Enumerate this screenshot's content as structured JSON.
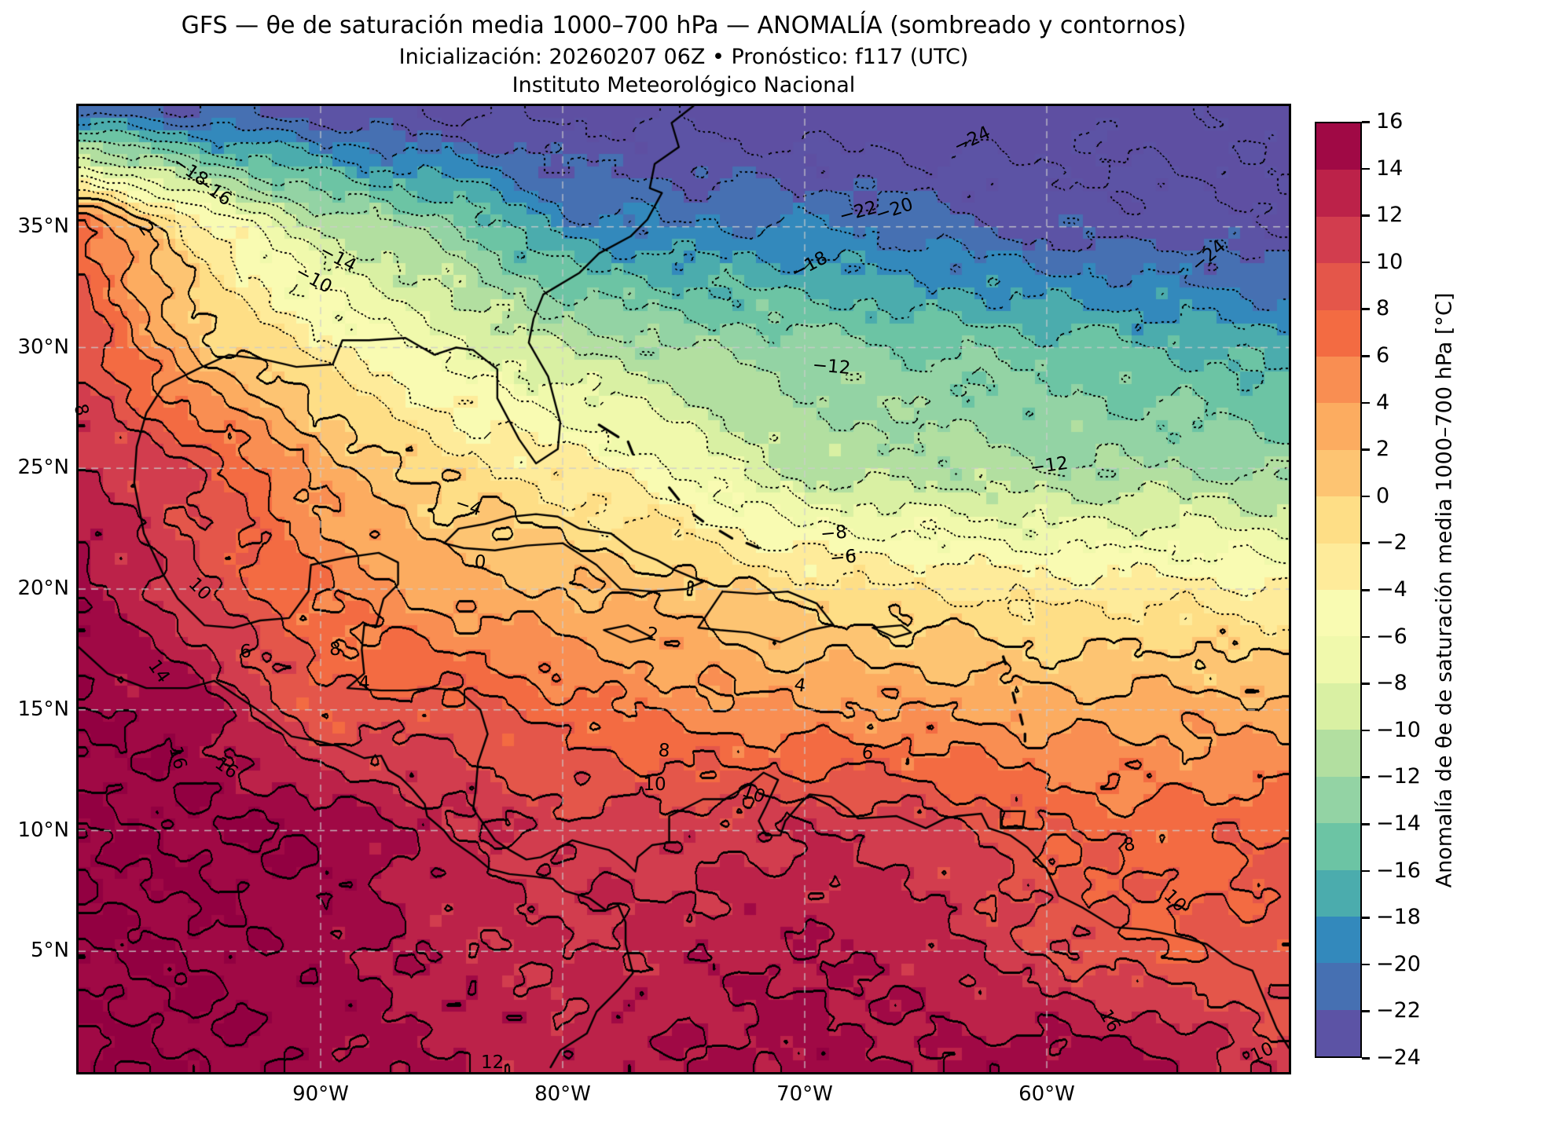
{
  "title": {
    "line1": "GFS — θe de saturación media 1000–700 hPa — ANOMALÍA (sombreado y contornos)",
    "line2": "Inicialización: 20260207 06Z   •   Pronóstico: f117 (UTC)",
    "line3": "Instituto Meteorológico Nacional"
  },
  "axes": {
    "lat_ticks": [
      {
        "label": "35°N",
        "value": 35
      },
      {
        "label": "30°N",
        "value": 30
      },
      {
        "label": "25°N",
        "value": 25
      },
      {
        "label": "20°N",
        "value": 20
      },
      {
        "label": "15°N",
        "value": 15
      },
      {
        "label": "10°N",
        "value": 10
      },
      {
        "label": "5°N",
        "value": 5
      }
    ],
    "lon_ticks": [
      {
        "label": "90°W",
        "value": -90
      },
      {
        "label": "80°W",
        "value": -80
      },
      {
        "label": "70°W",
        "value": -70
      },
      {
        "label": "60°W",
        "value": -60
      }
    ]
  },
  "colorbar": {
    "label": "Anomalía de θe de saturación media 1000–700 hPa [°C]",
    "tick_values": [
      16,
      14,
      12,
      10,
      8,
      6,
      4,
      2,
      0,
      -2,
      -4,
      -6,
      -8,
      -10,
      -12,
      -14,
      -16,
      -18,
      -20,
      -22,
      -24
    ],
    "tick_labels": [
      "16",
      "14",
      "12",
      "10",
      "8",
      "6",
      "4",
      "2",
      "0",
      "−2",
      "−4",
      "−6",
      "−8",
      "−10",
      "−12",
      "−14",
      "−16",
      "−18",
      "−20",
      "−22",
      "−24"
    ]
  },
  "chart_data": {
    "type": "heatmap",
    "field_name": "Anomalía de θe de saturación media 1000–700 hPa [°C]",
    "lon_range": [
      -100,
      -50
    ],
    "lat_range": [
      0,
      40
    ],
    "contour_interval": 2,
    "bin_edges_min": -24,
    "bin_edges_max": 16,
    "grid_lats": [
      40,
      35,
      30,
      25,
      20,
      15,
      10,
      5,
      0
    ],
    "grid_lons": [
      -100,
      -95,
      -90,
      -85,
      -80,
      -75,
      -70,
      -65,
      -60,
      -55,
      -50
    ],
    "values": [
      [
        -22,
        -23,
        -24,
        -25,
        -25,
        -25,
        -26,
        -26,
        -25,
        -25,
        -25
      ],
      [
        7,
        -3,
        -10,
        -13,
        -19,
        -20,
        -20,
        -21,
        -23,
        -23,
        -24
      ],
      [
        10,
        1,
        -3,
        -7,
        -10,
        -12,
        -13,
        -14,
        -15,
        -16,
        -17
      ],
      [
        12,
        10,
        3,
        -1,
        -3,
        -6,
        -11,
        -11,
        -12,
        -12,
        -13
      ],
      [
        15.5,
        10,
        6,
        3,
        2,
        1,
        -1,
        -2,
        -3,
        -3,
        -4
      ],
      [
        16,
        15,
        8,
        9,
        7,
        5,
        4,
        4,
        3,
        3,
        3
      ],
      [
        16,
        16,
        16,
        13,
        11,
        11,
        12,
        11,
        8,
        7,
        8
      ],
      [
        16,
        16,
        15,
        13,
        12,
        13,
        14,
        13,
        10,
        8,
        9
      ],
      [
        16,
        16,
        15,
        14,
        13,
        14,
        15,
        14,
        16,
        15,
        10
      ]
    ],
    "colors": [
      "#5c53a5",
      "#4670b2",
      "#3389bc",
      "#4bacad",
      "#6cc4a4",
      "#93d3a4",
      "#b2dfa0",
      "#d9f0a3",
      "#f0f9ac",
      "#f9fbb2",
      "#feeb9a",
      "#fede86",
      "#fdc472",
      "#fcac60",
      "#f98e52",
      "#f36b42",
      "#e4564a",
      "#d23d4e",
      "#bc2249",
      "#a00945"
    ],
    "under_color": "#5e4fa2",
    "over_color": "#920041",
    "gridline_color": "#c8c8c8",
    "contour_labels": [
      {
        "t": "−18",
        "lon": -95.4,
        "lat": 37.3,
        "r": 35
      },
      {
        "t": "−16",
        "lon": -94.4,
        "lat": 36.5,
        "r": 35
      },
      {
        "t": "2",
        "lon": -97.2,
        "lat": 34.9,
        "r": 55
      },
      {
        "t": "−14",
        "lon": -89.3,
        "lat": 33.7,
        "r": 28
      },
      {
        "t": "−10",
        "lon": -90.3,
        "lat": 32.8,
        "r": 28
      },
      {
        "t": "−24",
        "lon": -63.1,
        "lat": 38.6,
        "r": -25
      },
      {
        "t": "−22",
        "lon": -67.8,
        "lat": 35.6,
        "r": -15
      },
      {
        "t": "−20",
        "lon": -66.3,
        "lat": 35.7,
        "r": -18
      },
      {
        "t": "−18",
        "lon": -69.8,
        "lat": 33.4,
        "r": -28
      },
      {
        "t": "−24",
        "lon": -53.3,
        "lat": 33.8,
        "r": -40
      },
      {
        "t": "−12",
        "lon": -68.9,
        "lat": 29.2,
        "r": 5
      },
      {
        "t": "−12",
        "lon": -59.9,
        "lat": 25.1,
        "r": -8
      },
      {
        "t": "−8",
        "lon": -68.8,
        "lat": 22.3,
        "r": -5
      },
      {
        "t": "−6",
        "lon": -68.4,
        "lat": 21.3,
        "r": -5
      },
      {
        "t": "−4",
        "lon": -83.9,
        "lat": 23.4,
        "r": 18
      },
      {
        "t": "0",
        "lon": -83.4,
        "lat": 21.1,
        "r": 5
      },
      {
        "t": "2",
        "lon": -76.3,
        "lat": 18.1,
        "r": 10
      },
      {
        "t": "4",
        "lon": -70.2,
        "lat": 16.0,
        "r": 8
      },
      {
        "t": "6",
        "lon": -67.4,
        "lat": 13.2,
        "r": 5
      },
      {
        "t": "8",
        "lon": -75.8,
        "lat": 13.3,
        "r": 5
      },
      {
        "t": "8",
        "lon": -99.9,
        "lat": 27.4,
        "r": 75
      },
      {
        "t": "10",
        "lon": -95.0,
        "lat": 20.0,
        "r": 45
      },
      {
        "t": "10",
        "lon": -76.2,
        "lat": 11.9,
        "r": 0
      },
      {
        "t": "10",
        "lon": -72.1,
        "lat": 11.5,
        "r": 20
      },
      {
        "t": "14",
        "lon": -96.7,
        "lat": 16.6,
        "r": 55
      },
      {
        "t": "16",
        "lon": -95.9,
        "lat": 13.0,
        "r": 75
      },
      {
        "t": "16",
        "lon": -93.9,
        "lat": 12.6,
        "r": 35
      },
      {
        "t": "6",
        "lon": -93.1,
        "lat": 17.4,
        "r": 0
      },
      {
        "t": "8",
        "lon": -89.4,
        "lat": 17.5,
        "r": 0
      },
      {
        "t": "4",
        "lon": -88.2,
        "lat": 16.1,
        "r": 0
      },
      {
        "t": "8",
        "lon": -56.6,
        "lat": 9.4,
        "r": -10
      },
      {
        "t": "10",
        "lon": -54.7,
        "lat": 7.1,
        "r": 45
      },
      {
        "t": "16",
        "lon": -57.4,
        "lat": 2.1,
        "r": 60
      },
      {
        "t": "10",
        "lon": -51.1,
        "lat": 0.8,
        "r": -25
      },
      {
        "t": "12",
        "lon": -82.9,
        "lat": 0.4,
        "r": 0
      }
    ],
    "coastlines": {
      "mainland": [
        [
          -74.6,
          40
        ],
        [
          -75.5,
          39.3
        ],
        [
          -75.2,
          38.3
        ],
        [
          -76.2,
          37.6
        ],
        [
          -76.4,
          36.6
        ],
        [
          -75.9,
          36.4
        ],
        [
          -76.5,
          35.3
        ],
        [
          -77.2,
          34.6
        ],
        [
          -78.5,
          33.9
        ],
        [
          -79.3,
          33.1
        ],
        [
          -80.8,
          32.2
        ],
        [
          -81.2,
          31.2
        ],
        [
          -81.4,
          30.2
        ],
        [
          -80.6,
          28.8
        ],
        [
          -80.1,
          26.9
        ],
        [
          -80.2,
          25.8
        ],
        [
          -81.1,
          25.2
        ],
        [
          -81.8,
          26.2
        ],
        [
          -82.7,
          27.9
        ],
        [
          -82.7,
          29.1
        ],
        [
          -83.7,
          29.9
        ],
        [
          -84.4,
          30.0
        ],
        [
          -85.3,
          29.7
        ],
        [
          -86.5,
          30.4
        ],
        [
          -88.0,
          30.3
        ],
        [
          -89.1,
          30.3
        ],
        [
          -89.5,
          29.3
        ],
        [
          -91.0,
          29.2
        ],
        [
          -92.3,
          29.5
        ],
        [
          -93.8,
          29.7
        ],
        [
          -95.1,
          29.1
        ],
        [
          -96.5,
          28.4
        ],
        [
          -97.2,
          27.3
        ],
        [
          -97.6,
          25.9
        ],
        [
          -97.7,
          24.4
        ],
        [
          -97.3,
          22.3
        ],
        [
          -96.5,
          20.6
        ],
        [
          -95.9,
          19.6
        ],
        [
          -94.8,
          18.5
        ],
        [
          -93.6,
          18.4
        ],
        [
          -92.5,
          18.7
        ],
        [
          -91.3,
          18.8
        ],
        [
          -90.5,
          19.9
        ],
        [
          -90.4,
          21.0
        ],
        [
          -89.0,
          21.3
        ],
        [
          -87.6,
          21.5
        ],
        [
          -86.8,
          21.1
        ],
        [
          -86.8,
          20.2
        ],
        [
          -87.4,
          19.6
        ],
        [
          -87.7,
          18.5
        ],
        [
          -88.2,
          18.5
        ],
        [
          -88.3,
          17.5
        ],
        [
          -88.2,
          16.5
        ],
        [
          -88.9,
          15.9
        ],
        [
          -87.5,
          15.8
        ],
        [
          -86.4,
          15.8
        ],
        [
          -85.5,
          15.9
        ],
        [
          -84.3,
          15.8
        ],
        [
          -83.4,
          15.0
        ],
        [
          -83.1,
          14.0
        ],
        [
          -83.5,
          12.8
        ],
        [
          -83.6,
          11.6
        ],
        [
          -83.7,
          10.9
        ],
        [
          -82.8,
          9.6
        ],
        [
          -82.2,
          9.2
        ],
        [
          -81.5,
          8.8
        ],
        [
          -80.9,
          8.9
        ],
        [
          -80.1,
          9.3
        ],
        [
          -79.6,
          9.6
        ],
        [
          -78.9,
          9.4
        ],
        [
          -78.1,
          9.2
        ],
        [
          -77.4,
          8.7
        ],
        [
          -77.0,
          8.3
        ],
        [
          -76.9,
          8.9
        ],
        [
          -76.3,
          9.4
        ],
        [
          -75.6,
          9.5
        ],
        [
          -75.6,
          10.6
        ],
        [
          -74.8,
          11.0
        ],
        [
          -74.2,
          11.3
        ],
        [
          -73.3,
          11.3
        ],
        [
          -72.3,
          11.9
        ],
        [
          -71.7,
          12.4
        ],
        [
          -71.1,
          12.1
        ],
        [
          -71.6,
          11.0
        ],
        [
          -71.9,
          10.4
        ],
        [
          -71.6,
          9.8
        ],
        [
          -71.0,
          9.8
        ],
        [
          -70.8,
          10.4
        ],
        [
          -70.2,
          11.1
        ],
        [
          -69.8,
          11.5
        ],
        [
          -68.9,
          11.4
        ],
        [
          -68.2,
          10.9
        ],
        [
          -67.8,
          10.5
        ],
        [
          -66.2,
          10.6
        ],
        [
          -65.0,
          10.1
        ],
        [
          -64.2,
          10.5
        ],
        [
          -63.7,
          10.6
        ],
        [
          -62.7,
          10.7
        ],
        [
          -62.4,
          10.1
        ],
        [
          -61.5,
          9.8
        ],
        [
          -60.8,
          9.3
        ],
        [
          -60.0,
          8.4
        ],
        [
          -59.5,
          7.3
        ],
        [
          -58.5,
          6.8
        ],
        [
          -57.2,
          6.0
        ],
        [
          -55.9,
          5.9
        ],
        [
          -54.5,
          5.6
        ],
        [
          -53.4,
          5.3
        ],
        [
          -52.3,
          4.5
        ],
        [
          -51.5,
          4.2
        ],
        [
          -51.0,
          3.0
        ],
        [
          -50.5,
          1.8
        ],
        [
          -50.0,
          1.0
        ]
      ],
      "pacific": [
        [
          -100,
          17.6
        ],
        [
          -98.8,
          16.5
        ],
        [
          -97.2,
          15.9
        ],
        [
          -95.5,
          15.9
        ],
        [
          -94.4,
          16.2
        ],
        [
          -93.5,
          15.6
        ],
        [
          -92.3,
          14.8
        ],
        [
          -91.2,
          13.9
        ],
        [
          -90.1,
          13.7
        ],
        [
          -89.3,
          13.5
        ],
        [
          -88.2,
          13.0
        ],
        [
          -87.5,
          13.1
        ],
        [
          -87.2,
          12.5
        ],
        [
          -86.7,
          12.2
        ],
        [
          -86.2,
          11.7
        ],
        [
          -85.7,
          11.1
        ],
        [
          -85.6,
          10.6
        ],
        [
          -84.9,
          10.0
        ],
        [
          -84.6,
          9.6
        ],
        [
          -83.6,
          8.9
        ],
        [
          -83.0,
          8.4
        ],
        [
          -82.2,
          8.2
        ],
        [
          -81.2,
          8.1
        ],
        [
          -80.4,
          8.0
        ],
        [
          -79.9,
          7.5
        ],
        [
          -78.9,
          7.2
        ],
        [
          -78.2,
          6.7
        ],
        [
          -77.7,
          6.9
        ],
        [
          -77.4,
          6.2
        ],
        [
          -77.4,
          5.3
        ],
        [
          -77.1,
          4.1
        ],
        [
          -77.7,
          3.4
        ],
        [
          -78.6,
          2.5
        ],
        [
          -79.0,
          1.6
        ],
        [
          -80.1,
          0.9
        ],
        [
          -80.5,
          0.2
        ]
      ],
      "cuba": [
        [
          -84.9,
          21.9
        ],
        [
          -84.3,
          22.5
        ],
        [
          -83.2,
          22.7
        ],
        [
          -82.1,
          23.0
        ],
        [
          -81.1,
          23.1
        ],
        [
          -80.2,
          23.0
        ],
        [
          -79.3,
          22.5
        ],
        [
          -78.0,
          22.3
        ],
        [
          -77.1,
          21.6
        ],
        [
          -76.1,
          21.2
        ],
        [
          -75.4,
          20.8
        ],
        [
          -74.2,
          20.3
        ],
        [
          -74.9,
          20.0
        ],
        [
          -76.3,
          19.9
        ],
        [
          -77.6,
          20.0
        ],
        [
          -78.6,
          21.0
        ],
        [
          -80.0,
          21.9
        ],
        [
          -81.5,
          21.8
        ],
        [
          -82.8,
          21.6
        ],
        [
          -84.1,
          21.7
        ],
        [
          -84.9,
          21.9
        ]
      ],
      "hispaniola": [
        [
          -73.4,
          19.9
        ],
        [
          -72.0,
          19.8
        ],
        [
          -70.7,
          19.9
        ],
        [
          -69.5,
          19.4
        ],
        [
          -68.8,
          18.5
        ],
        [
          -69.8,
          18.3
        ],
        [
          -71.0,
          17.8
        ],
        [
          -72.3,
          18.2
        ],
        [
          -73.5,
          18.3
        ],
        [
          -74.4,
          18.4
        ],
        [
          -73.4,
          19.9
        ]
      ],
      "jamaica": [
        [
          -78.3,
          18.3
        ],
        [
          -77.3,
          18.5
        ],
        [
          -76.3,
          18.0
        ],
        [
          -77.2,
          17.8
        ],
        [
          -78.3,
          18.3
        ]
      ],
      "puerto_rico": [
        [
          -67.2,
          18.4
        ],
        [
          -66.0,
          18.5
        ],
        [
          -65.6,
          18.2
        ],
        [
          -66.3,
          18.0
        ],
        [
          -67.2,
          18.4
        ]
      ],
      "trinidad": [
        [
          -61.9,
          10.8
        ],
        [
          -60.9,
          10.8
        ],
        [
          -61.0,
          10.1
        ],
        [
          -61.9,
          10.1
        ],
        [
          -61.9,
          10.8
        ]
      ],
      "bahamas": [
        [
          [
            -78.5,
            26.8
          ],
          [
            -77.7,
            26.3
          ]
        ],
        [
          [
            -77.3,
            26.1
          ],
          [
            -77.1,
            25.6
          ]
        ],
        [
          [
            -75.6,
            24.2
          ],
          [
            -75.2,
            23.7
          ]
        ],
        [
          [
            -74.6,
            23.1
          ],
          [
            -74.2,
            22.8
          ]
        ],
        [
          [
            -73.5,
            22.4
          ],
          [
            -73.0,
            22.1
          ]
        ],
        [
          [
            -72.4,
            21.9
          ],
          [
            -71.9,
            21.7
          ]
        ]
      ],
      "lesser_antilles": [
        [
          [
            -61.8,
            17.2
          ],
          [
            -61.7,
            16.9
          ]
        ],
        [
          [
            -61.4,
            15.7
          ],
          [
            -61.3,
            15.3
          ]
        ],
        [
          [
            -61.1,
            14.8
          ],
          [
            -61.0,
            14.4
          ]
        ],
        [
          [
            -60.9,
            14.0
          ],
          [
            -60.9,
            13.7
          ]
        ]
      ]
    }
  }
}
